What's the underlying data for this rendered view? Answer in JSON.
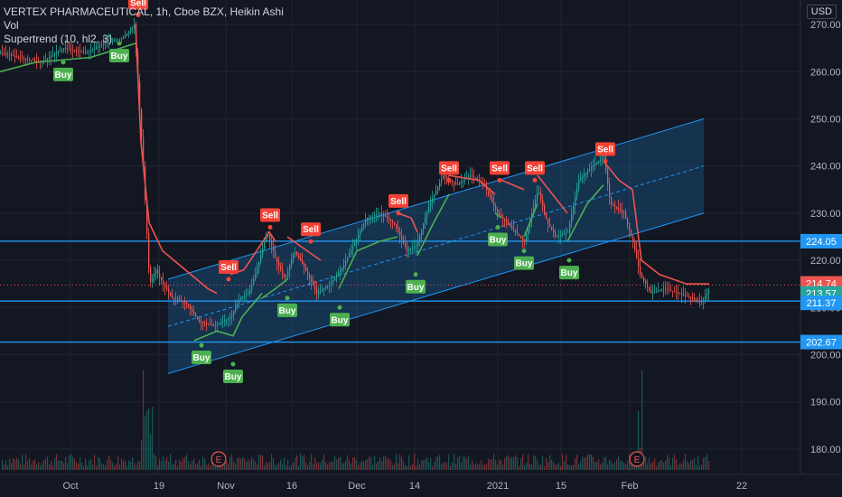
{
  "legend": {
    "symbol_line": "VERTEX PHARMACEUTICAL, 1h, Cboe BZX, Heikin Ashi",
    "vol_line": "Vol",
    "indicator_line": "Supertrend (10, hl2, 3)"
  },
  "currency": "USD",
  "colors": {
    "background": "#131722",
    "up": "#26a69a",
    "down": "#ef5350",
    "supertrend_up": "#4caf50",
    "supertrend_down": "#ef5350",
    "channel": "#2196f3",
    "hline": "#2196f3",
    "buy_label": "#4caf50",
    "sell_label": "#f44336"
  },
  "chart_data": {
    "type": "line",
    "title": "VERTEX PHARMACEUTICAL, 1h, Cboe BZX, Heikin Ashi",
    "ylim": [
      173,
      273
    ],
    "y_ticks": [
      180.0,
      190.0,
      200.0,
      210.0,
      220.0,
      230.0,
      240.0,
      250.0,
      260.0,
      270.0
    ],
    "x_tick_labels": [
      "Oct",
      "19",
      "Nov",
      "16",
      "Dec",
      "14",
      "2021",
      "15",
      "Feb",
      "22"
    ],
    "x_tick_index": [
      78,
      176,
      250,
      323,
      395,
      459,
      551,
      621,
      697,
      821
    ],
    "price_series": [
      {
        "i": 0,
        "v": 264
      },
      {
        "i": 20,
        "v": 263
      },
      {
        "i": 45,
        "v": 262
      },
      {
        "i": 70,
        "v": 265
      },
      {
        "i": 95,
        "v": 264
      },
      {
        "i": 115,
        "v": 266
      },
      {
        "i": 135,
        "v": 267
      },
      {
        "i": 148,
        "v": 270
      },
      {
        "i": 152,
        "v": 258
      },
      {
        "i": 158,
        "v": 240
      },
      {
        "i": 165,
        "v": 215
      },
      {
        "i": 172,
        "v": 218
      },
      {
        "i": 180,
        "v": 215
      },
      {
        "i": 190,
        "v": 212
      },
      {
        "i": 205,
        "v": 211
      },
      {
        "i": 220,
        "v": 207
      },
      {
        "i": 235,
        "v": 206
      },
      {
        "i": 255,
        "v": 208
      },
      {
        "i": 265,
        "v": 212
      },
      {
        "i": 275,
        "v": 213
      },
      {
        "i": 285,
        "v": 219
      },
      {
        "i": 295,
        "v": 226
      },
      {
        "i": 305,
        "v": 220
      },
      {
        "i": 315,
        "v": 216
      },
      {
        "i": 325,
        "v": 222
      },
      {
        "i": 335,
        "v": 219
      },
      {
        "i": 350,
        "v": 213
      },
      {
        "i": 365,
        "v": 215
      },
      {
        "i": 380,
        "v": 219
      },
      {
        "i": 395,
        "v": 225
      },
      {
        "i": 405,
        "v": 229
      },
      {
        "i": 420,
        "v": 230
      },
      {
        "i": 435,
        "v": 228
      },
      {
        "i": 450,
        "v": 222
      },
      {
        "i": 460,
        "v": 223
      },
      {
        "i": 475,
        "v": 232
      },
      {
        "i": 490,
        "v": 238
      },
      {
        "i": 505,
        "v": 236
      },
      {
        "i": 520,
        "v": 238
      },
      {
        "i": 535,
        "v": 236
      },
      {
        "i": 550,
        "v": 230
      },
      {
        "i": 565,
        "v": 227
      },
      {
        "i": 580,
        "v": 224
      },
      {
        "i": 595,
        "v": 235
      },
      {
        "i": 605,
        "v": 228
      },
      {
        "i": 615,
        "v": 225
      },
      {
        "i": 628,
        "v": 226
      },
      {
        "i": 640,
        "v": 237
      },
      {
        "i": 655,
        "v": 240
      },
      {
        "i": 668,
        "v": 242
      },
      {
        "i": 675,
        "v": 232
      },
      {
        "i": 690,
        "v": 230
      },
      {
        "i": 700,
        "v": 224
      },
      {
        "i": 708,
        "v": 217
      },
      {
        "i": 720,
        "v": 213
      },
      {
        "i": 735,
        "v": 214
      },
      {
        "i": 750,
        "v": 213
      },
      {
        "i": 765,
        "v": 212
      },
      {
        "i": 775,
        "v": 211
      },
      {
        "i": 785,
        "v": 214
      }
    ],
    "supertrend": [
      {
        "segment": "up",
        "points": [
          {
            "i": 0,
            "v": 260
          },
          {
            "i": 40,
            "v": 262
          },
          {
            "i": 100,
            "v": 263
          },
          {
            "i": 150,
            "v": 266
          }
        ]
      },
      {
        "segment": "down",
        "points": [
          {
            "i": 150,
            "v": 270
          },
          {
            "i": 156,
            "v": 245
          },
          {
            "i": 165,
            "v": 228
          },
          {
            "i": 180,
            "v": 222
          },
          {
            "i": 205,
            "v": 218
          },
          {
            "i": 230,
            "v": 214
          },
          {
            "i": 240,
            "v": 213
          }
        ]
      },
      {
        "segment": "up",
        "points": [
          {
            "i": 215,
            "v": 203
          },
          {
            "i": 240,
            "v": 205
          },
          {
            "i": 258,
            "v": 204
          },
          {
            "i": 268,
            "v": 208
          },
          {
            "i": 290,
            "v": 213
          }
        ]
      },
      {
        "segment": "down",
        "points": [
          {
            "i": 255,
            "v": 217
          },
          {
            "i": 270,
            "v": 218
          },
          {
            "i": 298,
            "v": 226
          },
          {
            "i": 305,
            "v": 224
          }
        ]
      },
      {
        "segment": "up",
        "points": [
          {
            "i": 290,
            "v": 212
          },
          {
            "i": 305,
            "v": 214
          },
          {
            "i": 318,
            "v": 216
          }
        ]
      },
      {
        "segment": "down",
        "points": [
          {
            "i": 318,
            "v": 225
          },
          {
            "i": 340,
            "v": 222
          },
          {
            "i": 355,
            "v": 220
          }
        ]
      },
      {
        "segment": "up",
        "points": [
          {
            "i": 375,
            "v": 214
          },
          {
            "i": 395,
            "v": 222
          },
          {
            "i": 420,
            "v": 224
          },
          {
            "i": 440,
            "v": 225
          }
        ]
      },
      {
        "segment": "down",
        "points": [
          {
            "i": 440,
            "v": 230
          },
          {
            "i": 455,
            "v": 229
          },
          {
            "i": 462,
            "v": 226
          }
        ]
      },
      {
        "segment": "up",
        "points": [
          {
            "i": 462,
            "v": 221
          },
          {
            "i": 480,
            "v": 228
          },
          {
            "i": 497,
            "v": 234
          }
        ]
      },
      {
        "segment": "down",
        "points": [
          {
            "i": 497,
            "v": 238
          },
          {
            "i": 530,
            "v": 237
          },
          {
            "i": 548,
            "v": 234
          }
        ]
      },
      {
        "segment": "up",
        "points": [
          {
            "i": 548,
            "v": 230
          },
          {
            "i": 555,
            "v": 229
          }
        ]
      },
      {
        "segment": "down",
        "points": [
          {
            "i": 555,
            "v": 237
          },
          {
            "i": 580,
            "v": 235
          }
        ]
      },
      {
        "segment": "up",
        "points": [
          {
            "i": 580,
            "v": 225
          },
          {
            "i": 595,
            "v": 232
          }
        ]
      },
      {
        "segment": "down",
        "points": [
          {
            "i": 595,
            "v": 238
          },
          {
            "i": 628,
            "v": 230
          }
        ]
      },
      {
        "segment": "up",
        "points": [
          {
            "i": 628,
            "v": 224
          },
          {
            "i": 650,
            "v": 232
          },
          {
            "i": 668,
            "v": 236
          }
        ]
      },
      {
        "segment": "down",
        "points": [
          {
            "i": 668,
            "v": 241
          },
          {
            "i": 685,
            "v": 237
          },
          {
            "i": 700,
            "v": 235
          },
          {
            "i": 710,
            "v": 220
          },
          {
            "i": 730,
            "v": 217
          },
          {
            "i": 760,
            "v": 215
          },
          {
            "i": 785,
            "v": 215
          }
        ]
      }
    ],
    "signals": [
      {
        "type": "Buy",
        "i": 70,
        "v": 262
      },
      {
        "type": "Buy",
        "i": 132,
        "v": 266
      },
      {
        "type": "Sell",
        "i": 153,
        "v": 272
      },
      {
        "type": "Buy",
        "i": 223,
        "v": 202
      },
      {
        "type": "Sell",
        "i": 253,
        "v": 216
      },
      {
        "type": "Buy",
        "i": 258,
        "v": 198
      },
      {
        "type": "Sell",
        "i": 299,
        "v": 227
      },
      {
        "type": "Buy",
        "i": 318,
        "v": 212
      },
      {
        "type": "Sell",
        "i": 344,
        "v": 224
      },
      {
        "type": "Buy",
        "i": 376,
        "v": 210
      },
      {
        "type": "Sell",
        "i": 441,
        "v": 230
      },
      {
        "type": "Buy",
        "i": 460,
        "v": 217
      },
      {
        "type": "Sell",
        "i": 497,
        "v": 237
      },
      {
        "type": "Buy",
        "i": 551,
        "v": 227
      },
      {
        "type": "Sell",
        "i": 553,
        "v": 237
      },
      {
        "type": "Buy",
        "i": 580,
        "v": 222
      },
      {
        "type": "Sell",
        "i": 592,
        "v": 237
      },
      {
        "type": "Buy",
        "i": 630,
        "v": 220
      },
      {
        "type": "Sell",
        "i": 670,
        "v": 241
      }
    ],
    "channel": {
      "start": {
        "i": 186,
        "v": 206
      },
      "end": {
        "i": 779,
        "v": 240
      },
      "half_width": 10
    },
    "hlines": [
      224.05,
      211.37,
      202.67
    ],
    "price_tags": [
      {
        "value": "224.05",
        "color": "#2196f3"
      },
      {
        "value": "214.74",
        "color": "#ef5350"
      },
      {
        "value": "213.57",
        "color": "#26a69a"
      },
      {
        "value": "211.37",
        "color": "#2196f3"
      },
      {
        "value": "202.67",
        "color": "#2196f3"
      }
    ],
    "event_markers": [
      {
        "label": "E",
        "i": 242
      },
      {
        "label": "E",
        "i": 705
      }
    ]
  }
}
